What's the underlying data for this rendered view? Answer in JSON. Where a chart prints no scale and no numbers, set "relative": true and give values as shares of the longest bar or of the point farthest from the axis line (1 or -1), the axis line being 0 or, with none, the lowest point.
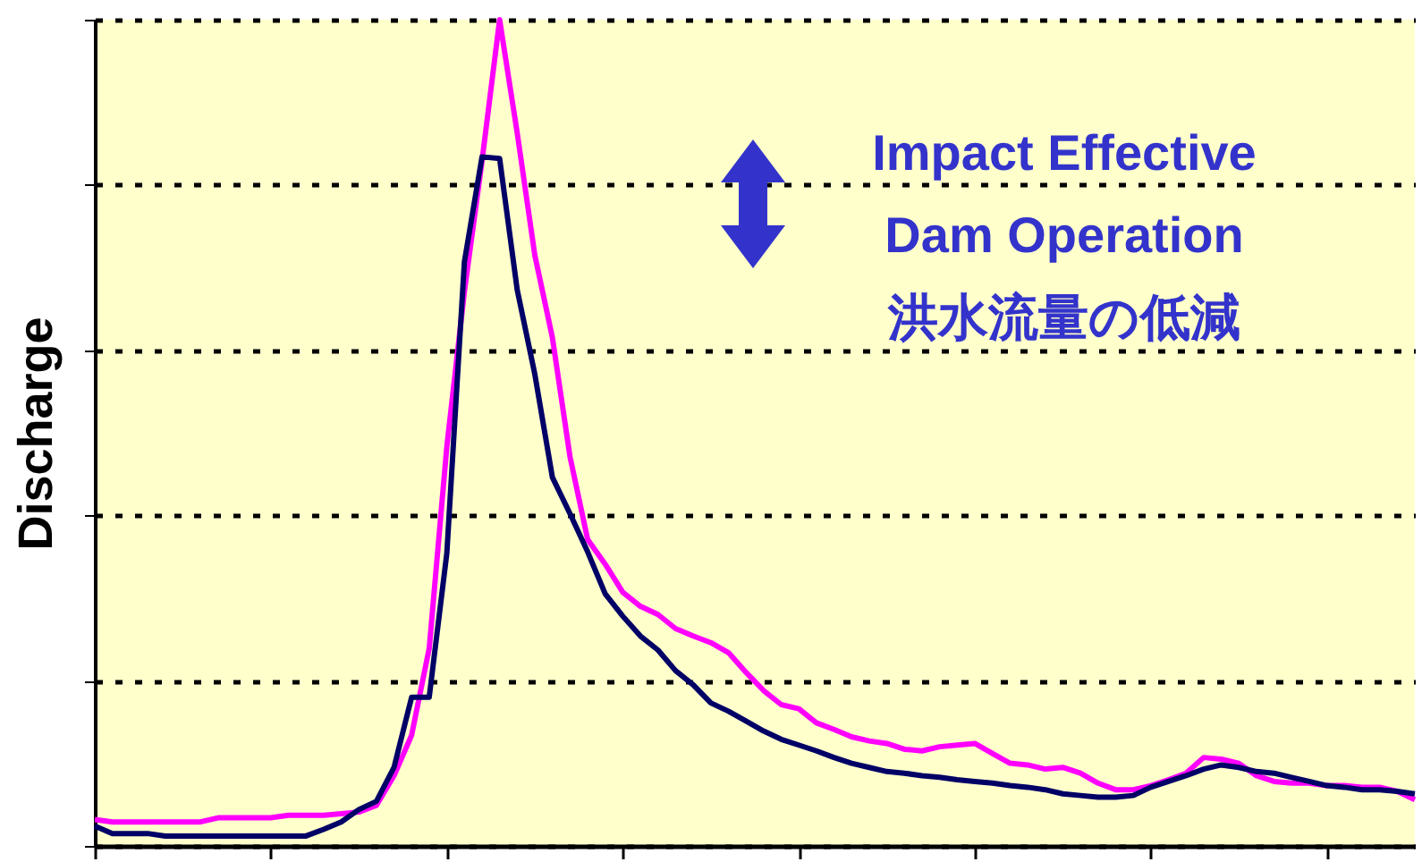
{
  "chart_data": {
    "type": "line",
    "ylabel": "Discharge",
    "relative": true,
    "grid": "y",
    "annotations": [
      "Impact Effective\nDam Operation\n洪水流量の低減"
    ],
    "categories": [
      null,
      null,
      null,
      null,
      null,
      null,
      null,
      null,
      null,
      null,
      null,
      null,
      null,
      null,
      null,
      null,
      null,
      null,
      null,
      null,
      null,
      null,
      null,
      null,
      null,
      null,
      null,
      null,
      null,
      null,
      null,
      null,
      null,
      null,
      null,
      null,
      null,
      null,
      null,
      null,
      null,
      null,
      null,
      null,
      null,
      null,
      null,
      null,
      null,
      null,
      null,
      null,
      null,
      null,
      null,
      null,
      null,
      null,
      null,
      null,
      null,
      null,
      null,
      null,
      null,
      null,
      null,
      null,
      null,
      null,
      null,
      null,
      null,
      null,
      null,
      null
    ],
    "series": [
      {
        "color": "#ff00ff",
        "values": [
          0.032,
          0.029,
          0.029,
          0.029,
          0.029,
          0.029,
          0.029,
          0.034,
          0.034,
          0.034,
          0.034,
          0.037,
          0.037,
          0.037,
          0.039,
          0.041,
          0.049,
          0.085,
          0.134,
          0.239,
          0.483,
          0.671,
          0.829,
          1,
          0.863,
          0.715,
          0.615,
          0.471,
          0.371,
          0.341,
          0.307,
          0.29,
          0.28,
          0.263,
          0.254,
          0.246,
          0.234,
          0.21,
          0.188,
          0.171,
          0.166,
          0.149,
          0.141,
          0.132,
          0.127,
          0.124,
          0.117,
          0.115,
          0.12,
          0.122,
          0.124,
          0.112,
          0.1,
          0.098,
          0.093,
          0.095,
          0.088,
          0.076,
          0.068,
          0.068,
          0.073,
          0.08,
          0.088,
          0.107,
          0.105,
          0.1,
          0.085,
          0.078,
          0.076,
          0.076,
          0.073,
          0.073,
          0.071,
          0.071,
          0.066,
          0.056
        ]
      },
      {
        "color": "#000066",
        "values": [
          0.024,
          0.015,
          0.015,
          0.015,
          0.012,
          0.012,
          0.012,
          0.012,
          0.012,
          0.012,
          0.012,
          0.012,
          0.012,
          0.02,
          0.029,
          0.044,
          0.054,
          0.095,
          0.18,
          0.18,
          0.354,
          0.707,
          0.834,
          0.832,
          0.673,
          0.571,
          0.446,
          0.402,
          0.356,
          0.305,
          0.278,
          0.254,
          0.237,
          0.212,
          0.195,
          0.173,
          0.163,
          0.151,
          0.139,
          0.129,
          0.122,
          0.115,
          0.107,
          0.1,
          0.095,
          0.09,
          0.088,
          0.085,
          0.083,
          0.08,
          0.078,
          0.076,
          0.073,
          0.071,
          0.068,
          0.063,
          0.061,
          0.059,
          0.059,
          0.061,
          0.071,
          0.078,
          0.085,
          0.093,
          0.098,
          0.095,
          0.09,
          0.088,
          0.083,
          0.078,
          0.073,
          0.071,
          0.068,
          0.068,
          0.066,
          0.063
        ]
      }
    ]
  }
}
